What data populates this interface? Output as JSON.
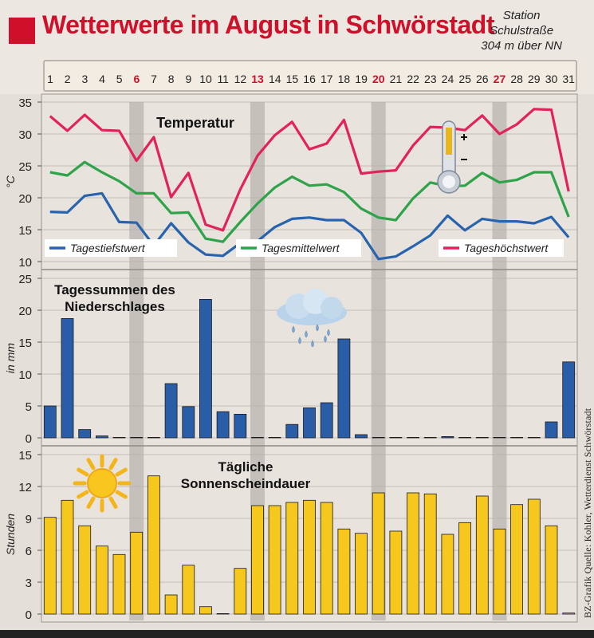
{
  "header": {
    "title": "Wetterwerte im August in Schwörstadt",
    "station_line1": "Station",
    "station_line2": "Schulstraße",
    "station_line3": "304 m über NN"
  },
  "credit": "BZ-Grafik   Quelle: Kohler, Wetterdienst Schwörstadt",
  "colors": {
    "accent_red": "#d0102a",
    "high": "#e2225a",
    "mean": "#2fa34a",
    "low": "#2863ae",
    "precip_bar": "#2a5da8",
    "sun_bar": "#f6c71c",
    "weekend_band": "#b9b4b0",
    "day_header_bg": "#f3ece2"
  },
  "icons": [
    "thermometer-icon",
    "cloud-rain-icon",
    "sun-icon"
  ],
  "chart_data": {
    "days": [
      "1",
      "2",
      "3",
      "4",
      "5",
      "6",
      "7",
      "8",
      "9",
      "10",
      "11",
      "12",
      "13",
      "14",
      "15",
      "16",
      "17",
      "18",
      "19",
      "20",
      "21",
      "22",
      "23",
      "24",
      "25",
      "26",
      "27",
      "28",
      "29",
      "30",
      "31"
    ],
    "highlighted_days": [
      "6",
      "13",
      "20",
      "27"
    ],
    "temperature": {
      "type": "line",
      "title": "Temperatur",
      "ylabel": "°C",
      "ylim": [
        10,
        35
      ],
      "yticks": [
        "10",
        "15",
        "20",
        "25",
        "30",
        "35"
      ],
      "series": [
        {
          "name": "Tageshöchstwert",
          "values": [
            32.8,
            30.5,
            33.0,
            30.6,
            30.5,
            25.8,
            29.5,
            20.1,
            23.9,
            15.8,
            14.9,
            21.3,
            26.6,
            29.8,
            31.9,
            27.6,
            28.5,
            32.2,
            23.8,
            24.1,
            24.3,
            28.2,
            31.1,
            31.0,
            30.6,
            32.9,
            30.0,
            31.5,
            33.9,
            33.8,
            21.0
          ]
        },
        {
          "name": "Tagesmittelwert",
          "values": [
            24.0,
            23.5,
            25.6,
            24.0,
            22.6,
            20.7,
            20.7,
            17.6,
            17.7,
            13.6,
            13.1,
            16.2,
            19.1,
            21.6,
            23.3,
            21.9,
            22.1,
            20.9,
            18.3,
            16.9,
            16.5,
            19.9,
            22.4,
            21.8,
            21.9,
            23.9,
            22.4,
            22.8,
            24.0,
            24.0,
            17.0
          ]
        },
        {
          "name": "Tagestiefstwert",
          "values": [
            17.8,
            17.7,
            20.3,
            20.7,
            16.2,
            16.1,
            12.5,
            16.0,
            13.0,
            11.1,
            10.9,
            12.9,
            13.2,
            15.4,
            16.7,
            16.9,
            16.5,
            16.5,
            14.5,
            10.4,
            10.8,
            12.4,
            14.1,
            17.2,
            14.9,
            16.7,
            16.3,
            16.3,
            16.0,
            17.0,
            13.8
          ]
        }
      ]
    },
    "precipitation": {
      "type": "bar",
      "title_line1": "Tagessummen des",
      "title_line2": "Niederschlages",
      "ylabel": "in mm",
      "ylim": [
        0,
        25
      ],
      "yticks": [
        "0",
        "5",
        "10",
        "15",
        "20",
        "25"
      ],
      "values": [
        5.0,
        18.7,
        1.3,
        0.3,
        0.0,
        0.0,
        0.0,
        8.5,
        4.9,
        21.7,
        4.1,
        3.7,
        0.0,
        0.0,
        2.1,
        4.7,
        5.5,
        15.5,
        0.5,
        0.0,
        0.0,
        0.0,
        0.0,
        0.2,
        0.0,
        0.0,
        0.0,
        0.0,
        0.0,
        2.5,
        11.9
      ]
    },
    "sunshine": {
      "type": "bar",
      "title_line1": "Tägliche",
      "title_line2": "Sonnenscheindauer",
      "ylabel": "Stunden",
      "ylim": [
        0,
        15
      ],
      "yticks": [
        "0",
        "3",
        "6",
        "9",
        "12",
        "15"
      ],
      "values": [
        9.1,
        10.7,
        8.3,
        6.4,
        5.6,
        7.7,
        13.0,
        1.8,
        4.6,
        0.7,
        0.0,
        4.3,
        10.2,
        10.2,
        10.5,
        10.7,
        10.5,
        8.0,
        7.6,
        11.4,
        7.8,
        11.4,
        11.3,
        7.5,
        8.6,
        11.1,
        8.0,
        10.3,
        10.8,
        8.3,
        0.1
      ]
    }
  }
}
